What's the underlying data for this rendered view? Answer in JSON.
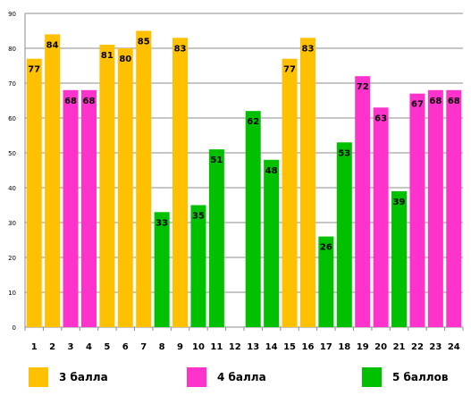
{
  "chart_data": {
    "type": "bar",
    "categories": [
      "1",
      "2",
      "3",
      "4",
      "5",
      "6",
      "7",
      "8",
      "9",
      "10",
      "11",
      "12",
      "13",
      "14",
      "15",
      "16",
      "17",
      "18",
      "19",
      "20",
      "21",
      "22",
      "23",
      "24"
    ],
    "values": [
      77,
      84,
      68,
      68,
      81,
      80,
      85,
      33,
      83,
      35,
      51,
      null,
      62,
      48,
      77,
      83,
      26,
      53,
      72,
      63,
      39,
      67,
      68,
      68
    ],
    "value_labels": [
      "77",
      "84",
      "68",
      "68",
      "81",
      "80",
      "85",
      "33",
      "83",
      "35",
      "51",
      "",
      "62",
      "48",
      "77",
      "83",
      "26",
      "53",
      "72",
      "63",
      "39",
      "67",
      "68",
      "68"
    ],
    "groups": [
      "3 балла",
      "3 балла",
      "4 балла",
      "4 балла",
      "3 балла",
      "3 балла",
      "3 балла",
      "5 баллов",
      "3 балла",
      "5 баллов",
      "5 баллов",
      "",
      "5 баллов",
      "5 баллов",
      "3 балла",
      "3 балла",
      "5 баллов",
      "5 баллов",
      "4 балла",
      "4 балла",
      "5 баллов",
      "4 балла",
      "4 балла",
      "4 балла"
    ],
    "legend": [
      {
        "name": "3 балла",
        "color": "#FFC000"
      },
      {
        "name": "4 балла",
        "color": "#FF33CC"
      },
      {
        "name": "5 баллов",
        "color": "#00C000"
      }
    ],
    "ylim": [
      0,
      90
    ],
    "yticks": [
      "0",
      "10",
      "20",
      "30",
      "40",
      "50",
      "60",
      "70",
      "80",
      "90"
    ],
    "grid": true,
    "title": "",
    "xlabel": "",
    "ylabel": ""
  }
}
